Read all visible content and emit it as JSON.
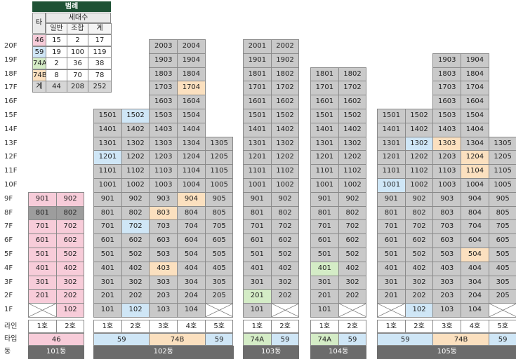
{
  "legend": {
    "title": "범례",
    "header_type": "타입",
    "header_households": "세대수",
    "sub_headers": [
      "일반",
      "조합",
      "계"
    ],
    "rows": [
      {
        "type": "46",
        "general": "15",
        "union": "2",
        "total": "17",
        "color": "#f7ccd9"
      },
      {
        "type": "59",
        "general": "19",
        "union": "100",
        "total": "119",
        "color": "#cfe6f6"
      },
      {
        "type": "74A",
        "general": "2",
        "union": "36",
        "total": "38",
        "color": "#d4ecc6"
      },
      {
        "type": "74B",
        "general": "8",
        "union": "70",
        "total": "78",
        "color": "#fbe0bf"
      },
      {
        "type": "계",
        "general": "44",
        "union": "208",
        "total": "252",
        "color": "#d6d6d6"
      }
    ]
  },
  "colors": {
    "gray": "#c9c9c9",
    "dark_gray": "#9d9d9d",
    "pink": "#f7ccd9",
    "blue": "#cfe6f6",
    "green": "#d4ecc6",
    "orange": "#fbe0bf",
    "dong_bar": "#6c6c6c",
    "legend_header": "#1f5235"
  },
  "floors": [
    "20F",
    "19F",
    "18F",
    "17F",
    "16F",
    "15F",
    "14F",
    "13F",
    "12F",
    "11F",
    "10F",
    "9F",
    "8F",
    "7F",
    "6F",
    "5F",
    "4F",
    "3F",
    "2F",
    "1F"
  ],
  "row_labels": {
    "line": "라인",
    "type": "타입",
    "dong": "동"
  },
  "buildings": [
    {
      "name": "101동",
      "lines": [
        "1호",
        "2호"
      ],
      "types": [
        {
          "label": "46",
          "span": 2,
          "color": "pink"
        }
      ],
      "units": [
        [
          "901",
          "pink"
        ],
        [
          "902",
          "pink"
        ],
        [
          "801",
          "darkgray"
        ],
        [
          "802",
          "darkgray"
        ],
        [
          "701",
          "pink"
        ],
        [
          "702",
          "pink"
        ],
        [
          "601",
          "pink"
        ],
        [
          "602",
          "pink"
        ],
        [
          "501",
          "pink"
        ],
        [
          "502",
          "pink"
        ],
        [
          "401",
          "pink"
        ],
        [
          "402",
          "pink"
        ],
        [
          "301",
          "pink"
        ],
        [
          "302",
          "pink"
        ],
        [
          "201",
          "pink"
        ],
        [
          "202",
          "pink"
        ],
        [
          "X",
          "x"
        ],
        [
          "102",
          "pink"
        ]
      ]
    },
    {
      "name": "102동",
      "lines": [
        "1호",
        "2호",
        "3호",
        "4호",
        "5호"
      ],
      "types": [
        {
          "label": "59",
          "span": 2,
          "color": "blue"
        },
        {
          "label": "74B",
          "span": 2,
          "color": "orange"
        },
        {
          "label": "59",
          "span": 1,
          "color": "blue"
        }
      ],
      "units": [
        [
          "2003",
          "gray"
        ],
        [
          "2004",
          "gray"
        ],
        [
          "1903",
          "gray"
        ],
        [
          "1904",
          "gray"
        ],
        [
          "1803",
          "gray"
        ],
        [
          "1804",
          "gray"
        ],
        [
          "1703",
          "gray"
        ],
        [
          "1704",
          "orange"
        ],
        [
          "1603",
          "gray"
        ],
        [
          "1604",
          "gray"
        ],
        [
          "1501",
          "gray"
        ],
        [
          "1502",
          "blue"
        ],
        [
          "1503",
          "gray"
        ],
        [
          "1504",
          "gray"
        ],
        [
          "1401",
          "gray"
        ],
        [
          "1402",
          "gray"
        ],
        [
          "1403",
          "gray"
        ],
        [
          "1404",
          "gray"
        ],
        [
          "1301",
          "gray"
        ],
        [
          "1302",
          "gray"
        ],
        [
          "1303",
          "gray"
        ],
        [
          "1304",
          "gray"
        ],
        [
          "1305",
          "gray"
        ],
        [
          "1201",
          "blue"
        ],
        [
          "1202",
          "gray"
        ],
        [
          "1203",
          "gray"
        ],
        [
          "1204",
          "gray"
        ],
        [
          "1205",
          "gray"
        ],
        [
          "1101",
          "gray"
        ],
        [
          "1102",
          "gray"
        ],
        [
          "1103",
          "gray"
        ],
        [
          "1104",
          "gray"
        ],
        [
          "1105",
          "gray"
        ],
        [
          "1001",
          "gray"
        ],
        [
          "1002",
          "gray"
        ],
        [
          "1003",
          "gray"
        ],
        [
          "1004",
          "gray"
        ],
        [
          "1005",
          "gray"
        ],
        [
          "901",
          "gray"
        ],
        [
          "902",
          "gray"
        ],
        [
          "903",
          "gray"
        ],
        [
          "904",
          "orange"
        ],
        [
          "905",
          "gray"
        ],
        [
          "801",
          "gray"
        ],
        [
          "802",
          "gray"
        ],
        [
          "803",
          "orange"
        ],
        [
          "804",
          "gray"
        ],
        [
          "805",
          "gray"
        ],
        [
          "701",
          "gray"
        ],
        [
          "702",
          "blue"
        ],
        [
          "703",
          "gray"
        ],
        [
          "704",
          "gray"
        ],
        [
          "705",
          "gray"
        ],
        [
          "601",
          "gray"
        ],
        [
          "602",
          "gray"
        ],
        [
          "603",
          "gray"
        ],
        [
          "604",
          "gray"
        ],
        [
          "605",
          "gray"
        ],
        [
          "501",
          "gray"
        ],
        [
          "502",
          "gray"
        ],
        [
          "503",
          "gray"
        ],
        [
          "504",
          "gray"
        ],
        [
          "505",
          "gray"
        ],
        [
          "401",
          "gray"
        ],
        [
          "402",
          "gray"
        ],
        [
          "403",
          "orange"
        ],
        [
          "404",
          "gray"
        ],
        [
          "405",
          "gray"
        ],
        [
          "301",
          "gray"
        ],
        [
          "302",
          "gray"
        ],
        [
          "303",
          "gray"
        ],
        [
          "304",
          "gray"
        ],
        [
          "305",
          "gray"
        ],
        [
          "201",
          "gray"
        ],
        [
          "202",
          "gray"
        ],
        [
          "203",
          "gray"
        ],
        [
          "204",
          "gray"
        ],
        [
          "205",
          "gray"
        ],
        [
          "101",
          "gray"
        ],
        [
          "102",
          "blue"
        ],
        [
          "103",
          "gray"
        ],
        [
          "104",
          "gray"
        ],
        [
          "X",
          "x"
        ]
      ]
    },
    {
      "name": "103동",
      "lines": [
        "1호",
        "2호"
      ],
      "types": [
        {
          "label": "74A",
          "span": 1,
          "color": "green"
        },
        {
          "label": "59",
          "span": 1,
          "color": "blue"
        }
      ],
      "units": [
        [
          "2001",
          "gray"
        ],
        [
          "2002",
          "gray"
        ],
        [
          "1901",
          "gray"
        ],
        [
          "1902",
          "gray"
        ],
        [
          "1801",
          "gray"
        ],
        [
          "1802",
          "gray"
        ],
        [
          "1701",
          "gray"
        ],
        [
          "1702",
          "gray"
        ],
        [
          "1601",
          "gray"
        ],
        [
          "1602",
          "gray"
        ],
        [
          "1501",
          "gray"
        ],
        [
          "1502",
          "gray"
        ],
        [
          "1401",
          "gray"
        ],
        [
          "1402",
          "gray"
        ],
        [
          "1301",
          "gray"
        ],
        [
          "1302",
          "gray"
        ],
        [
          "1201",
          "gray"
        ],
        [
          "1202",
          "gray"
        ],
        [
          "1101",
          "gray"
        ],
        [
          "1102",
          "gray"
        ],
        [
          "1001",
          "gray"
        ],
        [
          "1002",
          "gray"
        ],
        [
          "901",
          "gray"
        ],
        [
          "902",
          "gray"
        ],
        [
          "801",
          "gray"
        ],
        [
          "802",
          "gray"
        ],
        [
          "701",
          "gray"
        ],
        [
          "702",
          "gray"
        ],
        [
          "601",
          "gray"
        ],
        [
          "602",
          "gray"
        ],
        [
          "501",
          "gray"
        ],
        [
          "502",
          "gray"
        ],
        [
          "401",
          "gray"
        ],
        [
          "402",
          "gray"
        ],
        [
          "301",
          "gray"
        ],
        [
          "302",
          "gray"
        ],
        [
          "201",
          "green"
        ],
        [
          "202",
          "gray"
        ],
        [
          "101",
          "gray"
        ],
        [
          "X",
          "x"
        ]
      ]
    },
    {
      "name": "104동",
      "lines": [
        "1호",
        "2호"
      ],
      "types": [
        {
          "label": "74A",
          "span": 1,
          "color": "green"
        },
        {
          "label": "59",
          "span": 1,
          "color": "blue"
        }
      ],
      "units": [
        [
          "1801",
          "gray"
        ],
        [
          "1802",
          "gray"
        ],
        [
          "1701",
          "gray"
        ],
        [
          "1702",
          "gray"
        ],
        [
          "1601",
          "gray"
        ],
        [
          "1602",
          "gray"
        ],
        [
          "1501",
          "gray"
        ],
        [
          "1502",
          "gray"
        ],
        [
          "1401",
          "gray"
        ],
        [
          "1402",
          "gray"
        ],
        [
          "1301",
          "gray"
        ],
        [
          "1302",
          "gray"
        ],
        [
          "1201",
          "gray"
        ],
        [
          "1202",
          "gray"
        ],
        [
          "1101",
          "gray"
        ],
        [
          "1102",
          "gray"
        ],
        [
          "1001",
          "gray"
        ],
        [
          "1002",
          "gray"
        ],
        [
          "901",
          "gray"
        ],
        [
          "902",
          "gray"
        ],
        [
          "801",
          "gray"
        ],
        [
          "802",
          "gray"
        ],
        [
          "701",
          "gray"
        ],
        [
          "702",
          "gray"
        ],
        [
          "601",
          "gray"
        ],
        [
          "602",
          "gray"
        ],
        [
          "501",
          "gray"
        ],
        [
          "502",
          "gray"
        ],
        [
          "401",
          "green"
        ],
        [
          "402",
          "gray"
        ],
        [
          "301",
          "gray"
        ],
        [
          "302",
          "gray"
        ],
        [
          "201",
          "gray"
        ],
        [
          "202",
          "gray"
        ],
        [
          "101",
          "gray"
        ],
        [
          "X",
          "x"
        ]
      ]
    },
    {
      "name": "105동",
      "lines": [
        "1호",
        "2호",
        "3호",
        "4호",
        "5호"
      ],
      "types": [
        {
          "label": "59",
          "span": 2,
          "color": "blue"
        },
        {
          "label": "74B",
          "span": 2,
          "color": "orange"
        },
        {
          "label": "59",
          "span": 1,
          "color": "blue"
        }
      ],
      "units": [
        [
          "1903",
          "gray"
        ],
        [
          "1904",
          "gray"
        ],
        [
          "1803",
          "gray"
        ],
        [
          "1804",
          "gray"
        ],
        [
          "1703",
          "gray"
        ],
        [
          "1704",
          "gray"
        ],
        [
          "1603",
          "gray"
        ],
        [
          "1604",
          "gray"
        ],
        [
          "1501",
          "gray"
        ],
        [
          "1502",
          "gray"
        ],
        [
          "1503",
          "gray"
        ],
        [
          "1504",
          "gray"
        ],
        [
          "1401",
          "gray"
        ],
        [
          "1402",
          "gray"
        ],
        [
          "1403",
          "gray"
        ],
        [
          "1404",
          "gray"
        ],
        [
          "1301",
          "gray"
        ],
        [
          "1302",
          "blue"
        ],
        [
          "1303",
          "orange"
        ],
        [
          "1304",
          "gray"
        ],
        [
          "1305",
          "gray"
        ],
        [
          "1201",
          "gray"
        ],
        [
          "1202",
          "gray"
        ],
        [
          "1203",
          "gray"
        ],
        [
          "1204",
          "orange"
        ],
        [
          "1205",
          "gray"
        ],
        [
          "1101",
          "gray"
        ],
        [
          "1102",
          "gray"
        ],
        [
          "1103",
          "gray"
        ],
        [
          "1104",
          "orange"
        ],
        [
          "1105",
          "gray"
        ],
        [
          "1001",
          "blue"
        ],
        [
          "1002",
          "gray"
        ],
        [
          "1003",
          "gray"
        ],
        [
          "1004",
          "gray"
        ],
        [
          "1005",
          "gray"
        ],
        [
          "901",
          "gray"
        ],
        [
          "902",
          "gray"
        ],
        [
          "903",
          "gray"
        ],
        [
          "904",
          "gray"
        ],
        [
          "905",
          "gray"
        ],
        [
          "801",
          "gray"
        ],
        [
          "802",
          "gray"
        ],
        [
          "803",
          "gray"
        ],
        [
          "804",
          "gray"
        ],
        [
          "805",
          "gray"
        ],
        [
          "701",
          "gray"
        ],
        [
          "702",
          "gray"
        ],
        [
          "703",
          "gray"
        ],
        [
          "704",
          "gray"
        ],
        [
          "705",
          "gray"
        ],
        [
          "601",
          "gray"
        ],
        [
          "602",
          "gray"
        ],
        [
          "603",
          "gray"
        ],
        [
          "604",
          "gray"
        ],
        [
          "605",
          "gray"
        ],
        [
          "501",
          "gray"
        ],
        [
          "502",
          "gray"
        ],
        [
          "503",
          "gray"
        ],
        [
          "504",
          "orange"
        ],
        [
          "505",
          "gray"
        ],
        [
          "401",
          "gray"
        ],
        [
          "402",
          "gray"
        ],
        [
          "403",
          "gray"
        ],
        [
          "404",
          "gray"
        ],
        [
          "405",
          "gray"
        ],
        [
          "301",
          "gray"
        ],
        [
          "302",
          "gray"
        ],
        [
          "303",
          "gray"
        ],
        [
          "304",
          "gray"
        ],
        [
          "305",
          "gray"
        ],
        [
          "201",
          "gray"
        ],
        [
          "202",
          "gray"
        ],
        [
          "203",
          "gray"
        ],
        [
          "204",
          "gray"
        ],
        [
          "205",
          "gray"
        ],
        [
          "X",
          "x"
        ],
        [
          "102",
          "blue"
        ],
        [
          "103",
          "gray"
        ],
        [
          "104",
          "gray"
        ],
        [
          "X",
          "x"
        ]
      ]
    }
  ]
}
